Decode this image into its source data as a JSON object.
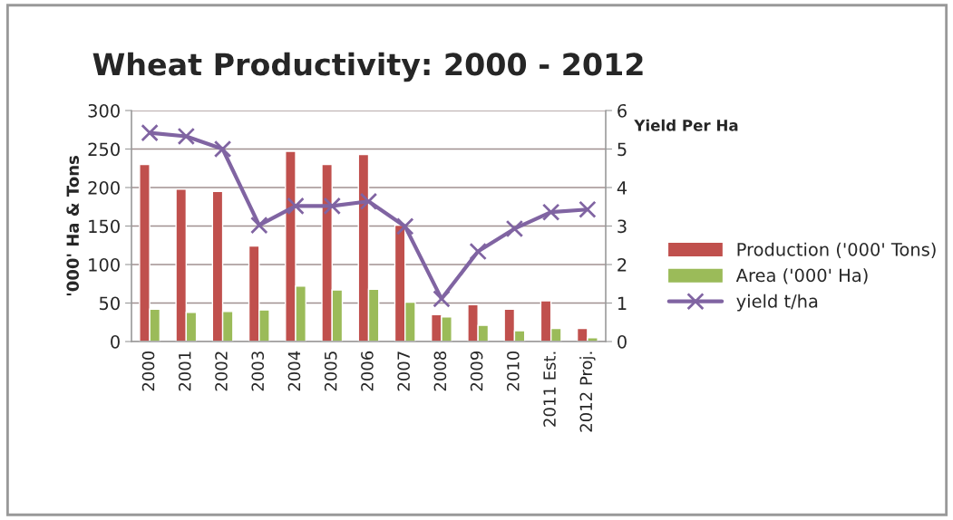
{
  "chart_data": {
    "type": "bar",
    "title": "Wheat Productivity: 2000 - 2012",
    "ylabel": "'000' Ha & Tons",
    "y2label": "Yield Per Ha",
    "categories": [
      "2000",
      "2001",
      "2002",
      "2003",
      "2004",
      "2005",
      "2006",
      "2007",
      "2008",
      "2009",
      "2010",
      "2011 Est.",
      "2012 Proj."
    ],
    "series": [
      {
        "name": "Production ('000' Tons)",
        "color": "#c0504d",
        "values": [
          230,
          198,
          195,
          124,
          247,
          230,
          243,
          151,
          35,
          48,
          42,
          53,
          17
        ]
      },
      {
        "name": "Area ('000' Ha)",
        "color": "#9bbb59",
        "values": [
          42,
          38,
          39,
          41,
          72,
          67,
          68,
          51,
          32,
          21,
          14,
          17,
          5
        ]
      },
      {
        "name": "yield t/ha",
        "color": "#8064a2",
        "type": "line",
        "axis": "y2",
        "marker": "cross",
        "values": [
          5.42,
          5.33,
          5.0,
          3.02,
          3.52,
          3.52,
          3.64,
          2.99,
          1.11,
          2.34,
          2.93,
          3.36,
          3.43
        ]
      }
    ],
    "ylim": [
      0,
      300
    ],
    "yticks": [
      0,
      50,
      100,
      150,
      200,
      250,
      300
    ],
    "y2lim": [
      0,
      6
    ],
    "y2ticks": [
      0,
      1,
      2,
      3,
      4,
      5,
      6
    ],
    "grid": "y",
    "legend": "right"
  }
}
